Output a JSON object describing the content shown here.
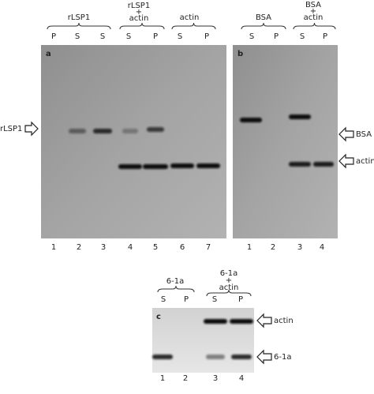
{
  "panels": [
    {
      "letter": "a",
      "groups": [
        {
          "label": [
            "rLSP1"
          ],
          "lanes": [
            "P",
            "S",
            "S"
          ]
        },
        {
          "label": [
            "rLSP1",
            "+",
            "actin"
          ],
          "lanes": [
            "S",
            "P"
          ]
        },
        {
          "label": [
            "actin"
          ],
          "lanes": [
            "S",
            "P"
          ]
        }
      ],
      "lane_numbers": [
        "1",
        "2",
        "3",
        "4",
        "5",
        "6",
        "7"
      ],
      "markers": [
        "rLSP1"
      ]
    },
    {
      "letter": "b",
      "groups": [
        {
          "label": [
            "BSA"
          ],
          "lanes": [
            "S",
            "P"
          ]
        },
        {
          "label": [
            "BSA",
            "+",
            "actin"
          ],
          "lanes": [
            "S",
            "P"
          ]
        }
      ],
      "lane_numbers": [
        "1",
        "2",
        "3",
        "4"
      ],
      "markers": [
        "BSA",
        "actin"
      ]
    },
    {
      "letter": "c",
      "groups": [
        {
          "label": [
            "6-1a"
          ],
          "lanes": [
            "S",
            "P"
          ]
        },
        {
          "label": [
            "6-1a",
            "+",
            "actin"
          ],
          "lanes": [
            "S",
            "P"
          ]
        }
      ],
      "lane_numbers": [
        "1",
        "2",
        "3",
        "4"
      ],
      "markers": [
        "actin",
        "6-1a"
      ]
    }
  ]
}
